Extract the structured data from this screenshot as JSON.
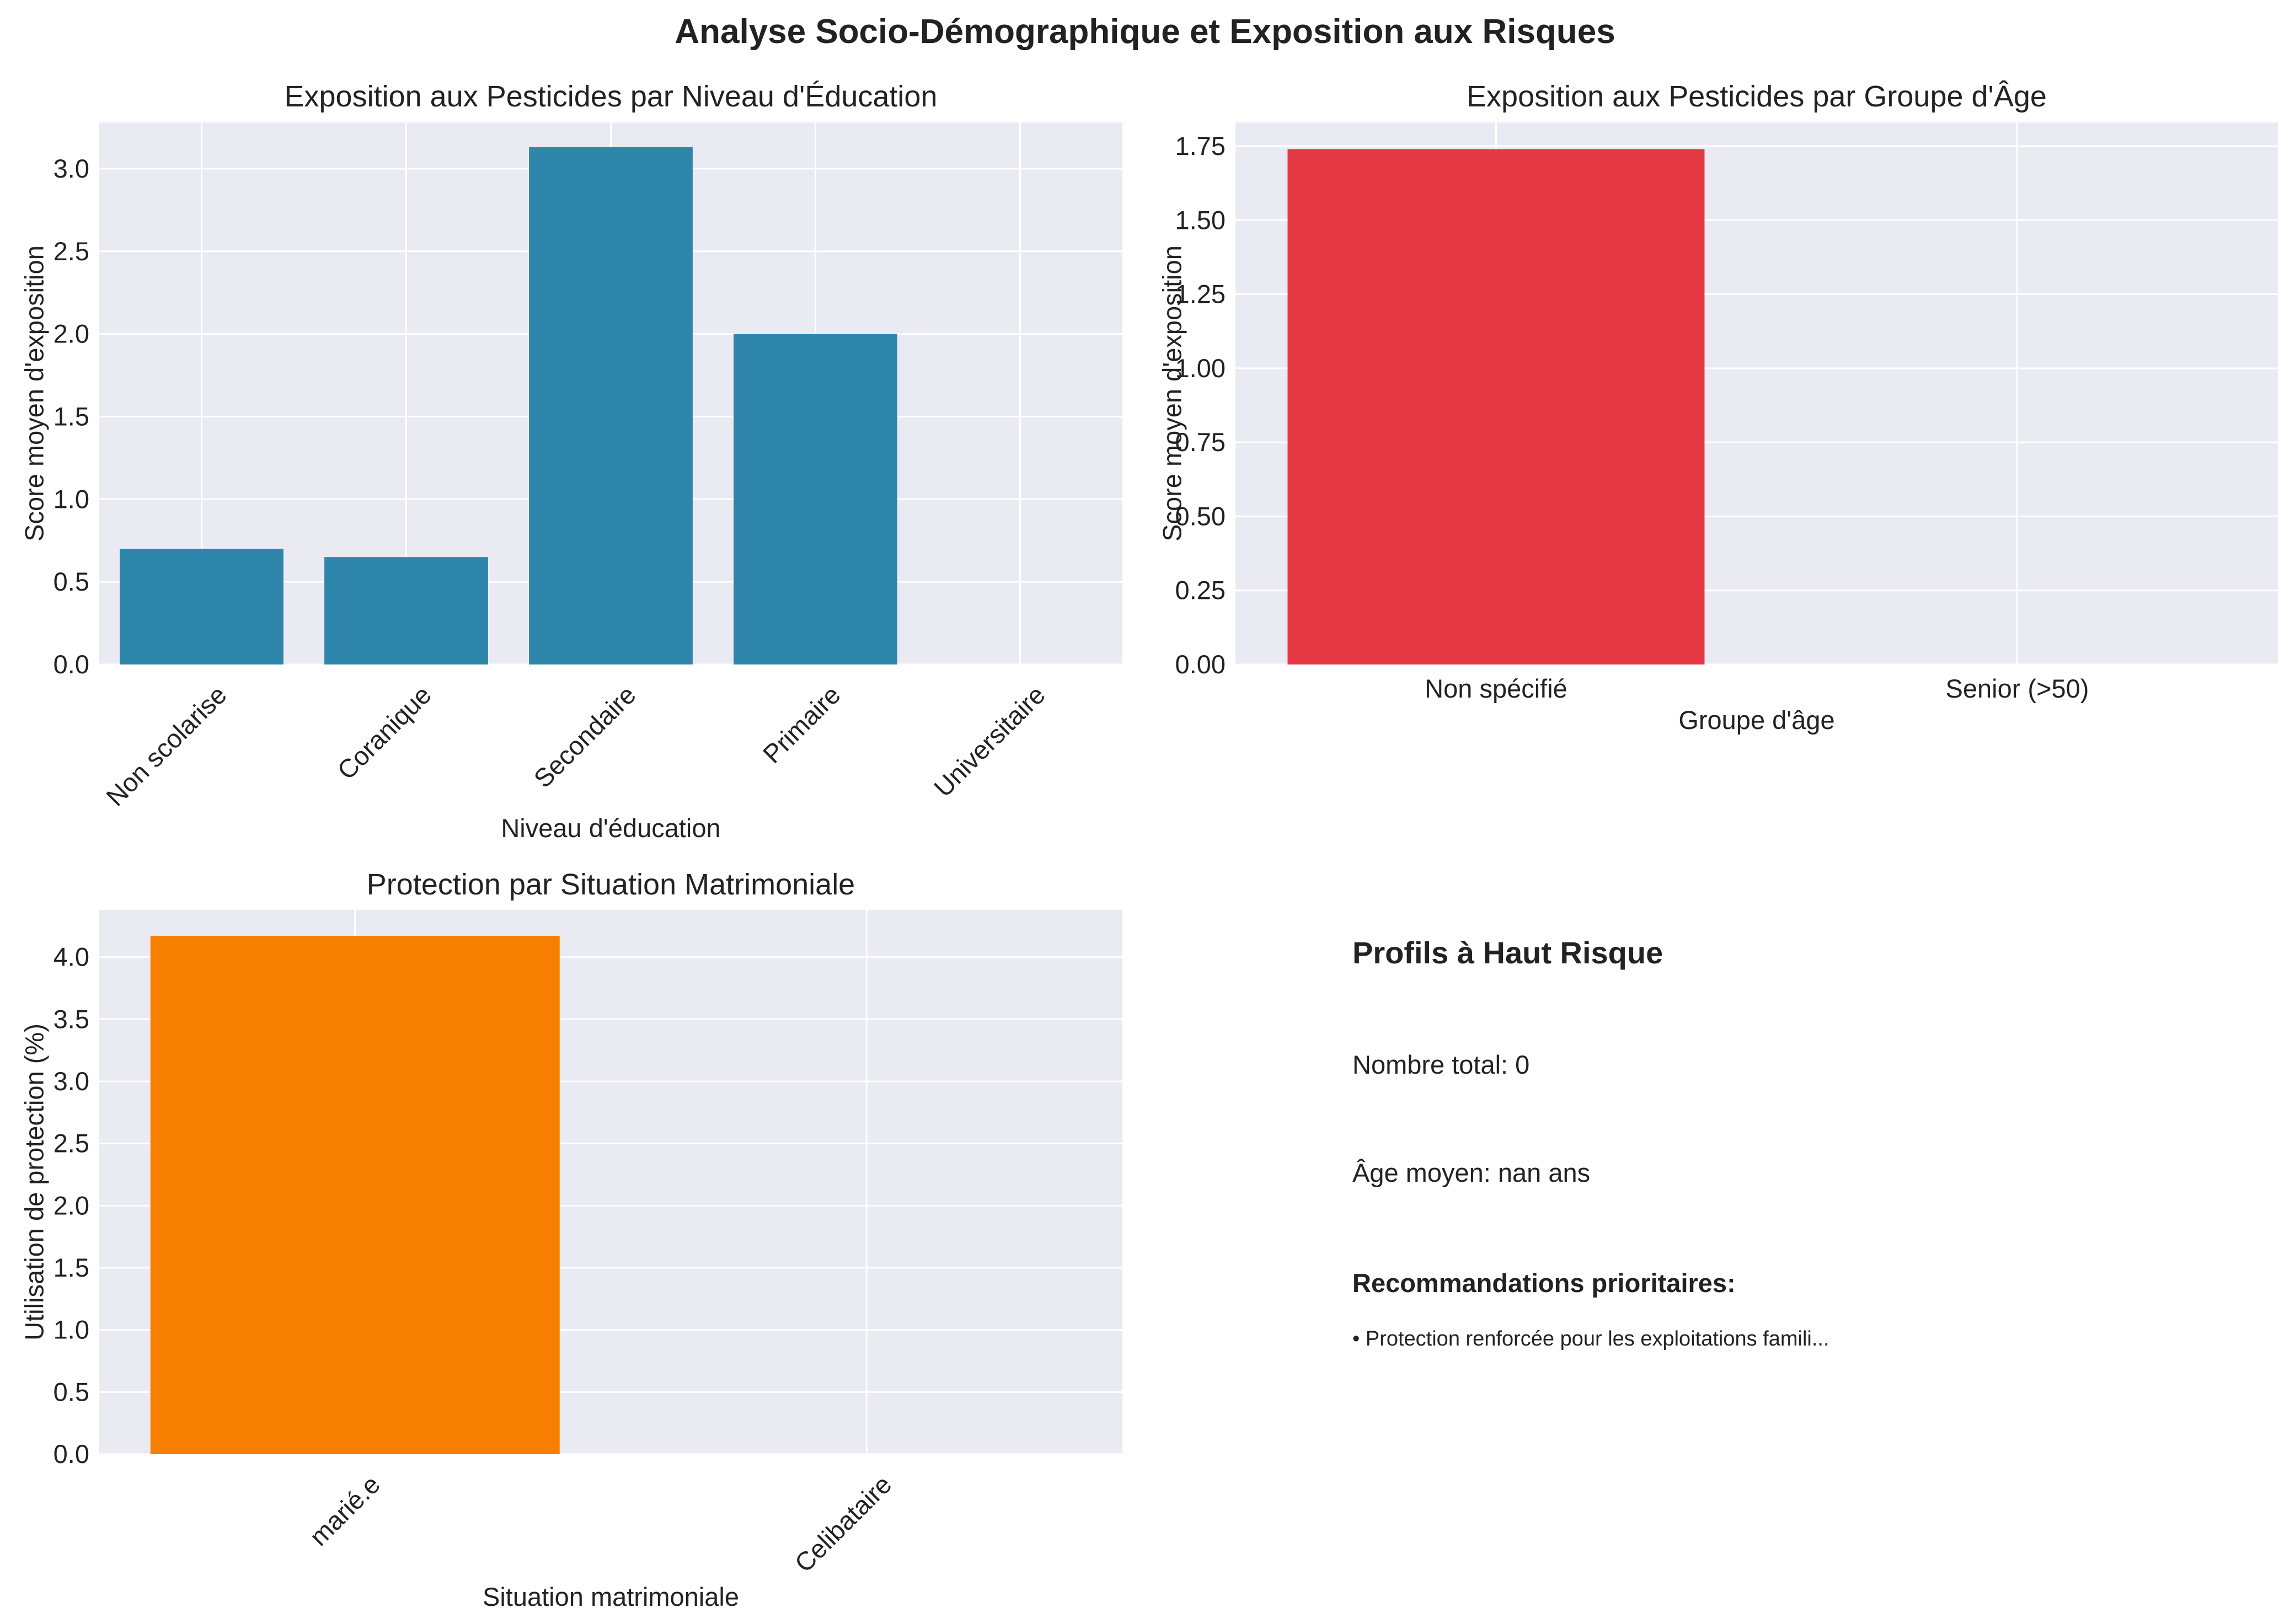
{
  "figure": {
    "title": "Analyse Socio-Démographique et Exposition aux Risques"
  },
  "chart_data": [
    {
      "type": "bar",
      "title": "Exposition aux Pesticides par Niveau d'Éducation",
      "xlabel": "Niveau d'éducation",
      "ylabel": "Score moyen d'exposition",
      "categories": [
        "Non scolarise",
        "Coranique",
        "Secondaire",
        "Primaire",
        "Universitaire"
      ],
      "values": [
        0.7,
        0.65,
        3.13,
        2.0,
        0.0
      ],
      "ylim": [
        0,
        3.28
      ],
      "yticks": [
        "0.0",
        "0.5",
        "1.0",
        "1.5",
        "2.0",
        "2.5",
        "3.0"
      ],
      "color": "#2e86ab",
      "xtick_rotation": 45,
      "grid": true
    },
    {
      "type": "bar",
      "title": "Exposition aux Pesticides par Groupe d'Âge",
      "xlabel": "Groupe d'âge",
      "ylabel": "Score moyen d'exposition",
      "categories": [
        "Non spécifié",
        "Senior (>50)"
      ],
      "values": [
        1.74,
        0.0
      ],
      "ylim": [
        0,
        1.83
      ],
      "yticks": [
        "0.00",
        "0.25",
        "0.50",
        "0.75",
        "1.00",
        "1.25",
        "1.50",
        "1.75"
      ],
      "color": "#e63946",
      "xtick_rotation": 0,
      "grid": true
    },
    {
      "type": "bar",
      "title": "Protection par Situation Matrimoniale",
      "xlabel": "Situation matrimoniale",
      "ylabel": "Utilisation de protection (%)",
      "categories": [
        "marié.e",
        "Celibataire"
      ],
      "values": [
        4.17,
        0.0
      ],
      "ylim": [
        0,
        4.38
      ],
      "yticks": [
        "0.0",
        "0.5",
        "1.0",
        "1.5",
        "2.0",
        "2.5",
        "3.0",
        "3.5",
        "4.0"
      ],
      "color": "#f77f00",
      "xtick_rotation": 45,
      "grid": true
    }
  ],
  "info_panel": {
    "heading": "Profils à Haut Risque",
    "total_line": "Nombre total: 0",
    "age_line": "Âge moyen: nan ans",
    "recommendations_heading": "Recommandations prioritaires:",
    "recommendation": "• Protection renforcée pour les exploitations famili..."
  },
  "colors": {
    "axes_background": "#eaeaf2",
    "grid": "#ffffff"
  }
}
